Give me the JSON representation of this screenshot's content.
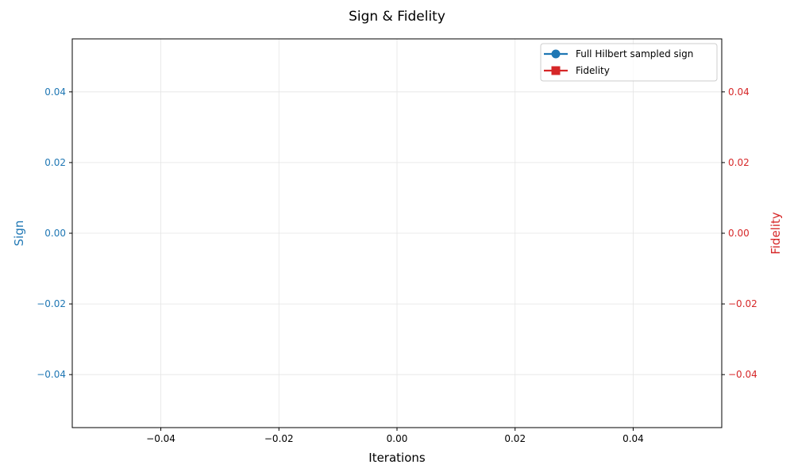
{
  "chart_data": {
    "type": "line",
    "title": "Sign & Fidelity",
    "xlabel": "Iterations",
    "ylabel_left": "Sign",
    "ylabel_right": "Fidelity",
    "xlim": [
      -0.055,
      0.055
    ],
    "ylim_left": [
      -0.055,
      0.055
    ],
    "ylim_right": [
      -0.055,
      0.055
    ],
    "x_ticks": [
      {
        "value": -0.04,
        "label": "−0.04"
      },
      {
        "value": -0.02,
        "label": "−0.02"
      },
      {
        "value": 0.0,
        "label": "0.00"
      },
      {
        "value": 0.02,
        "label": "0.02"
      },
      {
        "value": 0.04,
        "label": "0.04"
      }
    ],
    "y_ticks_left": [
      {
        "value": 0.04,
        "label": "0.04"
      },
      {
        "value": 0.02,
        "label": "0.02"
      },
      {
        "value": 0.0,
        "label": "0.00"
      },
      {
        "value": -0.02,
        "label": "−0.02"
      },
      {
        "value": -0.04,
        "label": "−0.04"
      }
    ],
    "y_ticks_right": [
      {
        "value": 0.04,
        "label": "0.04"
      },
      {
        "value": 0.02,
        "label": "0.02"
      },
      {
        "value": 0.0,
        "label": "0.00"
      },
      {
        "value": -0.02,
        "label": "−0.02"
      },
      {
        "value": -0.04,
        "label": "−0.04"
      }
    ],
    "grid": true,
    "legend_position": "top-right",
    "series": [
      {
        "name": "Full Hilbert sampled sign",
        "axis": "left",
        "marker": "circle",
        "color": "#1f77b4",
        "x": [],
        "y": []
      },
      {
        "name": "Fidelity",
        "axis": "right",
        "marker": "square",
        "color": "#d62728",
        "x": [],
        "y": []
      }
    ],
    "colors": {
      "left_axis": "#1f77b4",
      "right_axis": "#d62728",
      "grid": "#e5e5e5",
      "axes": "#000000"
    }
  }
}
